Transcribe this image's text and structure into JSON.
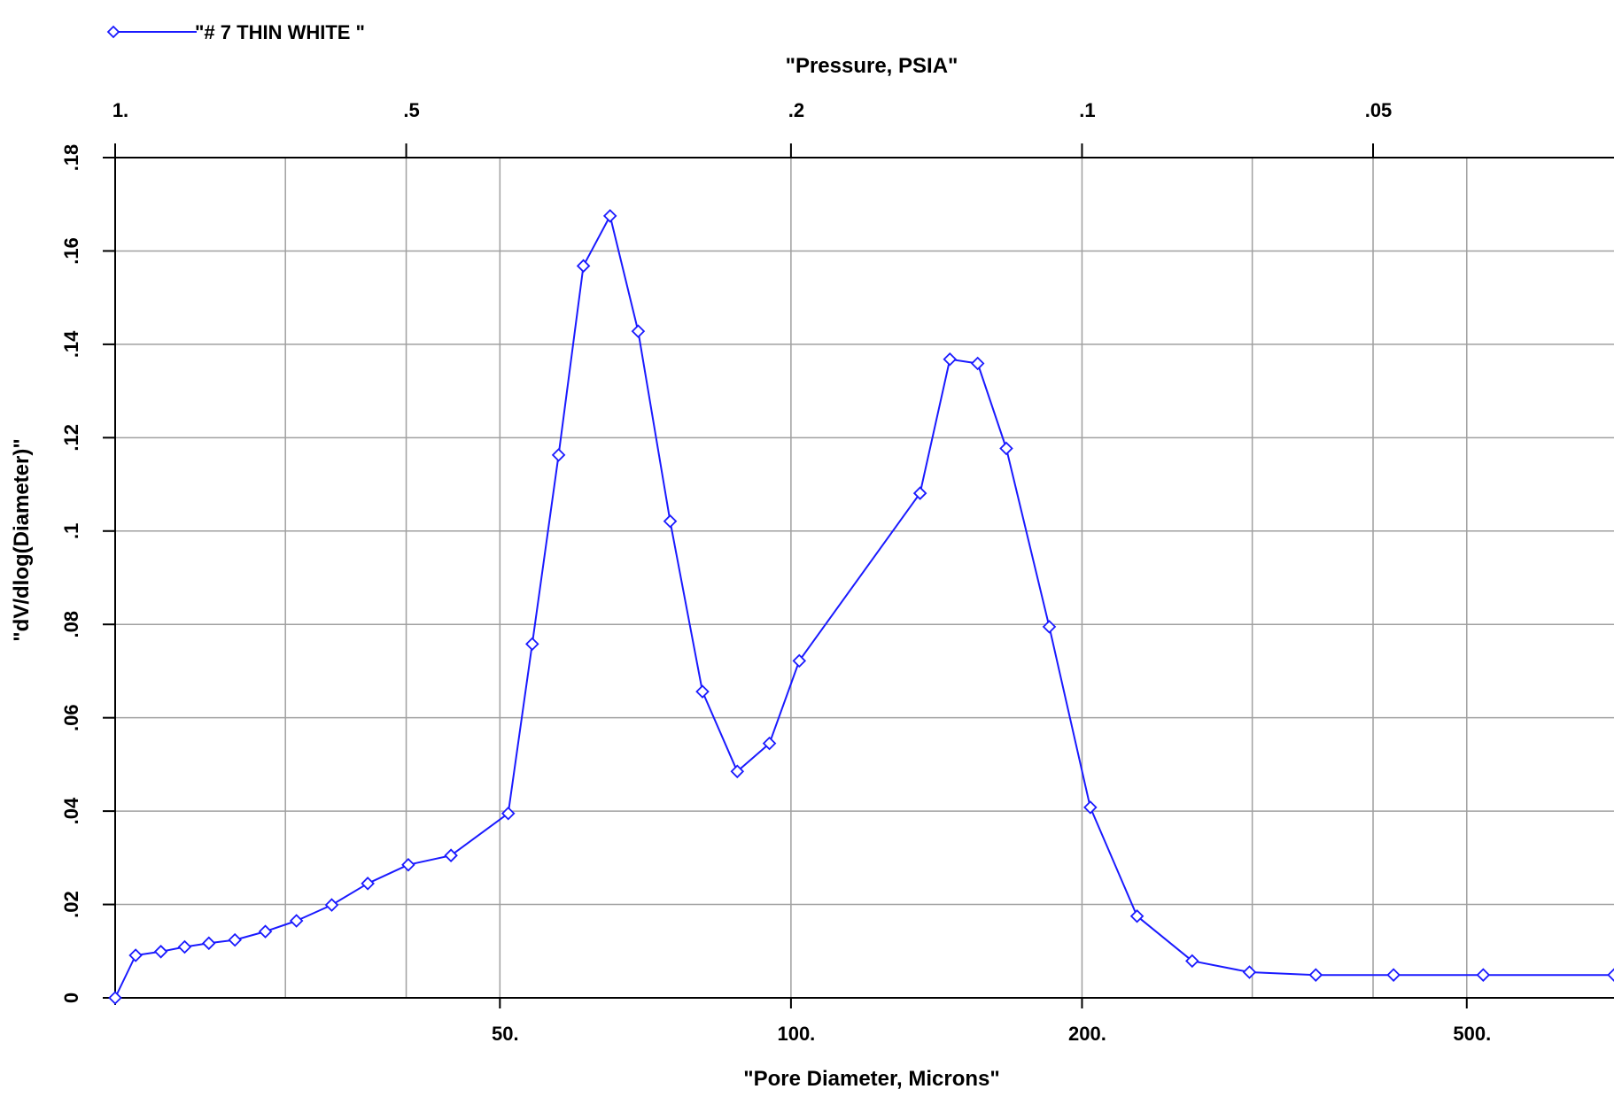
{
  "chart_data": {
    "type": "line",
    "title": "",
    "legend": {
      "position": "top-left",
      "entries": [
        {
          "label": "\"# 7 THIN WHITE \"",
          "color": "#1a1aff",
          "marker": "diamond"
        }
      ]
    },
    "xlabel": "\"Pore Diameter, Microns\"",
    "x2label": "\"Pressure, PSIA\"",
    "ylabel": "\"dV/dlog(Diameter)\"",
    "x_scale": "log",
    "xlim": [
      20,
      710
    ],
    "ylim": [
      0,
      0.18
    ],
    "grid": true,
    "x_ticks": [
      {
        "value": 50,
        "label": "50."
      },
      {
        "value": 100,
        "label": "100."
      },
      {
        "value": 200,
        "label": "200."
      },
      {
        "value": 500,
        "label": "500."
      }
    ],
    "x_grid": [
      30,
      40,
      50,
      100,
      200,
      300,
      400,
      500
    ],
    "top_ticks": [
      {
        "value": 20,
        "label": "1."
      },
      {
        "value": 40,
        "label": ".5"
      },
      {
        "value": 100,
        "label": ".2"
      },
      {
        "value": 200,
        "label": ".1"
      },
      {
        "value": 400,
        "label": ".05"
      }
    ],
    "y_ticks": [
      {
        "value": 0,
        "label": "0"
      },
      {
        "value": 0.02,
        "label": ".02"
      },
      {
        "value": 0.04,
        "label": ".04"
      },
      {
        "value": 0.06,
        "label": ".06"
      },
      {
        "value": 0.08,
        "label": ".08"
      },
      {
        "value": 0.1,
        "label": ".1"
      },
      {
        "value": 0.12,
        "label": ".12"
      },
      {
        "value": 0.14,
        "label": ".14"
      },
      {
        "value": 0.16,
        "label": ".16"
      },
      {
        "value": 0.18,
        "label": ".18"
      }
    ],
    "series": [
      {
        "name": "\"# 7 THIN WHITE \"",
        "color": "#1a1aff",
        "x": [
          20.0,
          21.0,
          22.3,
          23.6,
          25.0,
          26.6,
          28.6,
          30.8,
          33.5,
          36.5,
          40.2,
          44.5,
          51.0,
          54.0,
          57.5,
          61.0,
          65.0,
          69.5,
          75.0,
          81.0,
          88.0,
          95.0,
          102.0,
          136.0,
          146.0,
          156.0,
          167.0,
          185.0,
          204.0,
          228.0,
          260.0,
          298.0,
          349.0,
          420.0,
          520.0,
          710.0
        ],
        "y": [
          0.0,
          0.0091,
          0.0099,
          0.0109,
          0.0117,
          0.0124,
          0.0142,
          0.0165,
          0.0199,
          0.0245,
          0.0285,
          0.0305,
          0.0395,
          0.0758,
          0.1163,
          0.1568,
          0.1675,
          0.1428,
          0.1021,
          0.0656,
          0.0485,
          0.0545,
          0.0722,
          0.1081,
          0.1368,
          0.1359,
          0.1177,
          0.0795,
          0.0408,
          0.0175,
          0.0079,
          0.0055,
          0.0049,
          0.0049,
          0.0049,
          0.0049
        ]
      }
    ]
  }
}
